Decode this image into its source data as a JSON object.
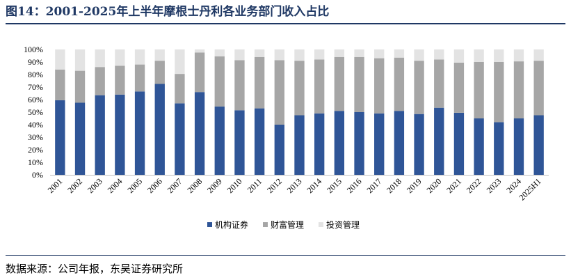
{
  "header": {
    "title": "图14：2001-2025年上半年摩根士丹利各业务部门收入占比"
  },
  "footer": {
    "source": "数据来源：公司年报，东吴证券研究所"
  },
  "colors": {
    "series": [
      "#2f5597",
      "#a6a6a6",
      "#e3e3e3"
    ]
  },
  "chart_data": {
    "type": "bar",
    "stacked": true,
    "categories": [
      "2001",
      "2002",
      "2003",
      "2004",
      "2005",
      "2006",
      "2007",
      "2008",
      "2009",
      "2010",
      "2011",
      "2012",
      "2013",
      "2014",
      "2015",
      "2016",
      "2017",
      "2018",
      "2019",
      "2020",
      "2021",
      "2022",
      "2023",
      "2024",
      "2025H1"
    ],
    "series": [
      {
        "name": "机构证券",
        "values": [
          59.5,
          57.5,
          63.5,
          64,
          66.5,
          72.5,
          57,
          66,
          54.5,
          51.5,
          53,
          40,
          47.5,
          49,
          51,
          50,
          49,
          51,
          48.5,
          53.5,
          49.5,
          45,
          42,
          45,
          47.5
        ]
      },
      {
        "name": "财富管理",
        "values": [
          24.5,
          25.5,
          22.5,
          23,
          21.5,
          18.5,
          23.5,
          31.5,
          40,
          40,
          41,
          51.5,
          43.5,
          43,
          43,
          44,
          44,
          42.5,
          42.5,
          38.5,
          40,
          45,
          48,
          45.5,
          43.5
        ]
      },
      {
        "name": "投资管理",
        "values": [
          16,
          17,
          14,
          13,
          12,
          9,
          19.5,
          2.5,
          5.5,
          8.5,
          6,
          8.5,
          9,
          8,
          6,
          6,
          7,
          6.5,
          9,
          8,
          10.5,
          10,
          10,
          9.5,
          9
        ]
      }
    ],
    "yticks": [
      "0%",
      "10%",
      "20%",
      "30%",
      "40%",
      "50%",
      "60%",
      "70%",
      "80%",
      "90%",
      "100%"
    ],
    "ylim": [
      0,
      100
    ],
    "legend_position": "bottom-center",
    "grid": false
  }
}
